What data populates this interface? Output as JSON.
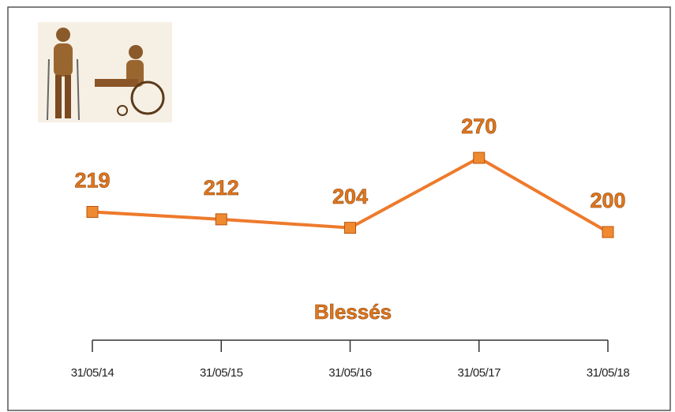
{
  "chart_data": {
    "type": "line",
    "title": "Blessés",
    "categories": [
      "31/05/14",
      "31/05/15",
      "31/05/16",
      "31/05/17",
      "31/05/18"
    ],
    "series": [
      {
        "name": "Blessés",
        "color": "#ee7a2c",
        "values": [
          219,
          212,
          204,
          270,
          200
        ]
      }
    ]
  }
}
